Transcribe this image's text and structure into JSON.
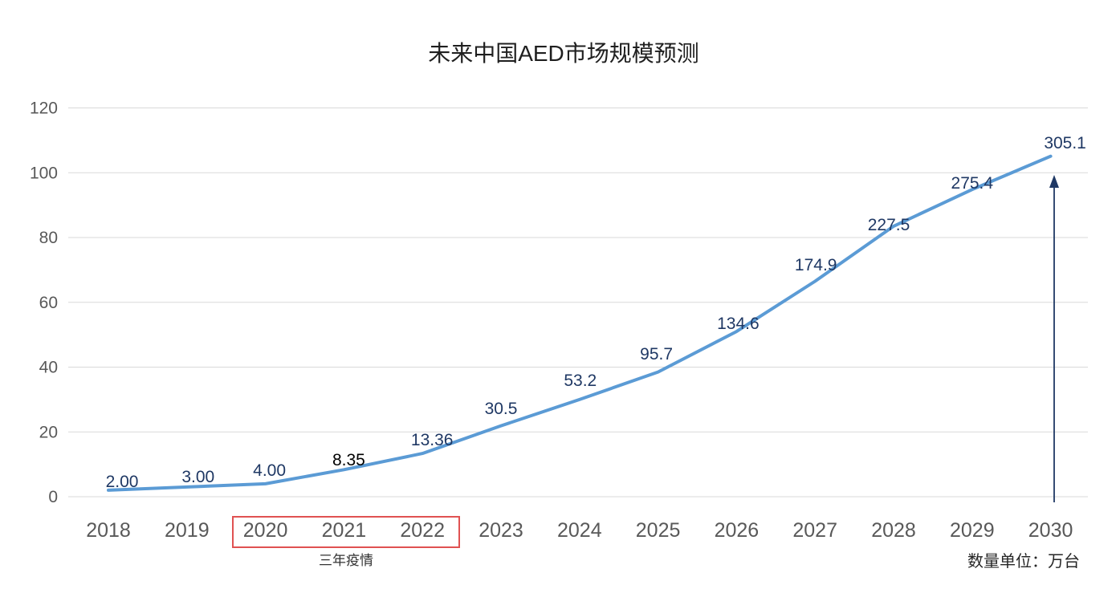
{
  "title": "未来中国AED市场规模预测",
  "annotations": {
    "pandemic_label": "三年疫情",
    "unit_label": "数量单位：万台"
  },
  "colors": {
    "line": "#5b9bd5",
    "grid": "#d9d9d9",
    "tick_label": "#595959",
    "data_label": "#1f3864",
    "data_label_override_color": "#000000",
    "data_label_override_index": 3,
    "pandemic_box": "#e05252",
    "arrow": "#1f3864",
    "title_color": "#1f1f1f"
  },
  "chart_data": {
    "type": "line",
    "title": "未来中国AED市场规模预测",
    "categories": [
      "2018",
      "2019",
      "2020",
      "2021",
      "2022",
      "2023",
      "2024",
      "2025",
      "2026",
      "2027",
      "2028",
      "2029",
      "2030"
    ],
    "values": [
      2.0,
      3.0,
      4.0,
      8.35,
      13.36,
      30.5,
      53.2,
      95.7,
      134.6,
      174.9,
      227.5,
      275.4,
      305.1
    ],
    "data_labels": [
      "2.00",
      "3.00",
      "4.00",
      "8.35",
      "13.36",
      "30.5",
      "53.2",
      "95.7",
      "134.6",
      "174.9",
      "227.5",
      "275.4",
      "305.1"
    ],
    "plotted_positions_axis_units": [
      2,
      3,
      4,
      8.35,
      13.36,
      21.9,
      30,
      38.5,
      51,
      66.5,
      83.5,
      94.8,
      105.1
    ],
    "xlabel": "",
    "ylabel": "",
    "ylim": [
      0,
      120
    ],
    "yticks": [
      0,
      20,
      40,
      60,
      80,
      100,
      120
    ],
    "grid": true,
    "legend": "none",
    "unit_label": "数量单位：万台",
    "pandemic_annotation": {
      "years": [
        "2020",
        "2021",
        "2022"
      ],
      "label": "三年疫情"
    }
  }
}
